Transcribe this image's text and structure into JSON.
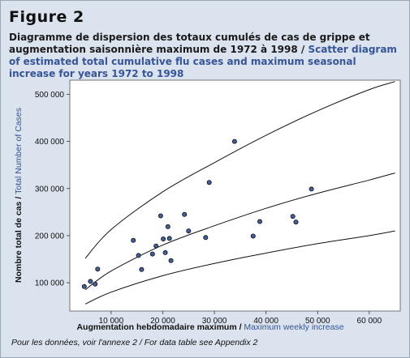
{
  "figure_label": "Figure 2",
  "caption": {
    "french": "Diagramme de dispersion des totaux cumulés de cas de grippe et augmentation saisonnière maximum de 1972 à 1998",
    "separator": " / ",
    "english": "Scatter diagram of estimated total cumulative flu cases and maximum seasonal increase for years 1972 to 1998"
  },
  "footnote": "Pour les données, voir l'annexe 2 / For data table see Appendix 2",
  "colors": {
    "background": "#dbe3ee",
    "plot_background": "#ffffff",
    "english_text": "#35549a",
    "point_fill": "#3f5f9f",
    "point_stroke": "#111111"
  },
  "chart_data": {
    "type": "scatter",
    "xlabel_fr": "Augmentation hebdomadaire maximum",
    "xlabel_sep": " / ",
    "xlabel_en": "Maximum weekly increase",
    "ylabel_fr": "Nombre total de cas",
    "ylabel_sep": " / ",
    "ylabel_en": "Total Number of Cases",
    "xlim": [
      2000,
      66000
    ],
    "ylim": [
      40000,
      530000
    ],
    "x_ticks": [
      10000,
      20000,
      30000,
      40000,
      50000,
      60000
    ],
    "x_tick_labels": [
      "10 000",
      "20 000",
      "30 000",
      "40 000",
      "50 000",
      "60 000"
    ],
    "y_ticks": [
      100000,
      200000,
      300000,
      400000,
      500000
    ],
    "y_tick_labels": [
      "100 000",
      "200 000",
      "300 000",
      "400 000",
      "500 000"
    ],
    "grid": false,
    "points": [
      {
        "x": 4800,
        "y": 92000
      },
      {
        "x": 6000,
        "y": 103000
      },
      {
        "x": 6900,
        "y": 97000
      },
      {
        "x": 7400,
        "y": 129000
      },
      {
        "x": 14300,
        "y": 190000
      },
      {
        "x": 15300,
        "y": 158000
      },
      {
        "x": 15900,
        "y": 128000
      },
      {
        "x": 18000,
        "y": 161000
      },
      {
        "x": 18700,
        "y": 178000
      },
      {
        "x": 19600,
        "y": 242000
      },
      {
        "x": 20100,
        "y": 193000
      },
      {
        "x": 20500,
        "y": 164000
      },
      {
        "x": 21000,
        "y": 219000
      },
      {
        "x": 21300,
        "y": 194000
      },
      {
        "x": 21600,
        "y": 147000
      },
      {
        "x": 24200,
        "y": 245000
      },
      {
        "x": 25000,
        "y": 210000
      },
      {
        "x": 28300,
        "y": 196000
      },
      {
        "x": 29000,
        "y": 313000
      },
      {
        "x": 33900,
        "y": 400000
      },
      {
        "x": 37500,
        "y": 199000
      },
      {
        "x": 38800,
        "y": 230000
      },
      {
        "x": 45200,
        "y": 241000
      },
      {
        "x": 45800,
        "y": 229000
      },
      {
        "x": 48800,
        "y": 299000
      }
    ],
    "curves": [
      {
        "role": "upper",
        "points": [
          [
            5000,
            152000
          ],
          [
            10000,
            213000
          ],
          [
            20000,
            293000
          ],
          [
            30000,
            355000
          ],
          [
            40000,
            413000
          ],
          [
            50000,
            465000
          ],
          [
            60000,
            510000
          ],
          [
            65000,
            527000
          ]
        ]
      },
      {
        "role": "fit",
        "points": [
          [
            5000,
            85000
          ],
          [
            10000,
            125000
          ],
          [
            20000,
            180000
          ],
          [
            30000,
            221000
          ],
          [
            40000,
            258000
          ],
          [
            50000,
            290000
          ],
          [
            60000,
            318000
          ],
          [
            65000,
            333000
          ]
        ]
      },
      {
        "role": "lower",
        "points": [
          [
            5000,
            55000
          ],
          [
            10000,
            80000
          ],
          [
            20000,
            115000
          ],
          [
            30000,
            141000
          ],
          [
            40000,
            163000
          ],
          [
            50000,
            183000
          ],
          [
            60000,
            200000
          ],
          [
            65000,
            210000
          ]
        ]
      }
    ]
  }
}
